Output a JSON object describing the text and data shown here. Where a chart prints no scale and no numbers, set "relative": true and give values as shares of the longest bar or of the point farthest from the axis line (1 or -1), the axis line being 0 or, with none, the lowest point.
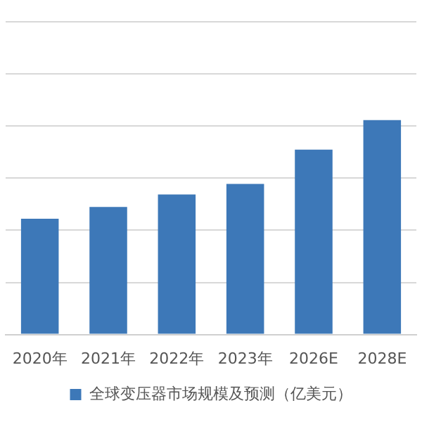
{
  "chart_data": {
    "type": "bar",
    "relative": true,
    "categories": [
      "2020年",
      "2021年",
      "2022年",
      "2023年",
      "2026E",
      "2028E"
    ],
    "series": [
      {
        "name": "全球变压器市场规模及预测（亿美元）",
        "color": "#3d78b8",
        "values": [
          0.54,
          0.595,
          0.653,
          0.702,
          0.862,
          1
        ]
      }
    ],
    "grid": "y",
    "legend": "bottom"
  }
}
